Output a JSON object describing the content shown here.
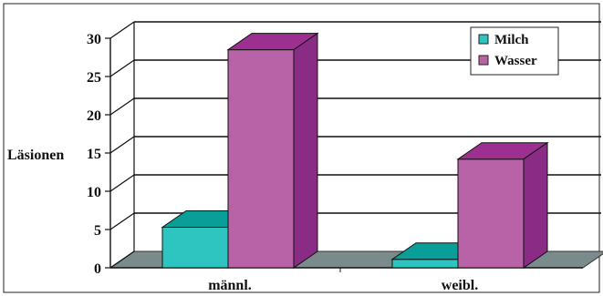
{
  "chart_data": {
    "type": "bar",
    "title": "",
    "xlabel": "",
    "ylabel": "Läsionen",
    "categories": [
      "männl.",
      "weibl."
    ],
    "series": [
      {
        "name": "Milch",
        "values": [
          5.3,
          1.1
        ]
      },
      {
        "name": "Wasser",
        "values": [
          28.5,
          14.2
        ]
      }
    ],
    "ylim": [
      0,
      30
    ],
    "yticks": [
      "0",
      "5",
      "10",
      "15",
      "20",
      "25",
      "30"
    ],
    "grid": true,
    "legend_position": "top-right",
    "three_d": true,
    "colors": {
      "Milch": {
        "front": "#2ec4c0",
        "top": "#0a9e98",
        "side": "#0c8a84"
      },
      "Wasser": {
        "front": "#b863a8",
        "top": "#9c2f8f",
        "side": "#8a2b86"
      },
      "floor": "#7b8a8a"
    }
  }
}
